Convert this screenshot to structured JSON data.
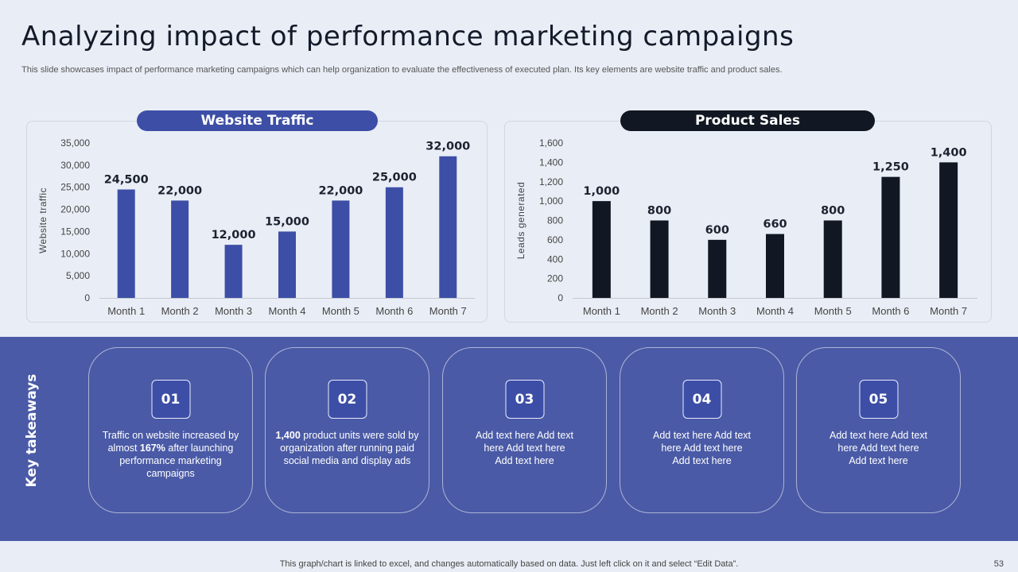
{
  "title": "Analyzing impact of performance marketing campaigns",
  "subtitle": "This slide showcases impact of performance marketing campaigns which can help organization to evaluate the effectiveness of executed plan. Its key elements are website traffic and product sales.",
  "colors": {
    "traffic_bar": "#3d4ea6",
    "sales_bar": "#111823",
    "band": "#4a5aa6",
    "background": "#e9eef6"
  },
  "chart_data": [
    {
      "type": "bar",
      "title": "Website Traffic",
      "ylabel": "Website traffic",
      "xlabel": "",
      "categories": [
        "Month 1",
        "Month 2",
        "Month 3",
        "Month 4",
        "Month 5",
        "Month 6",
        "Month 7"
      ],
      "values": [
        24500,
        22000,
        12000,
        15000,
        22000,
        25000,
        32000
      ],
      "value_labels": [
        "24,500",
        "22,000",
        "12,000",
        "15,000",
        "22,000",
        "25,000",
        "32,000"
      ],
      "ylim": [
        0,
        35000
      ],
      "yticks": [
        0,
        5000,
        10000,
        15000,
        20000,
        25000,
        30000,
        35000
      ],
      "ytick_labels": [
        "0",
        "5,000",
        "10,000",
        "15,000",
        "20,000",
        "25,000",
        "30,000",
        "35,000"
      ],
      "grid": false,
      "color": "#3d4ea6"
    },
    {
      "type": "bar",
      "title": "Product Sales",
      "ylabel": "Leads generated",
      "xlabel": "",
      "categories": [
        "Month 1",
        "Month 2",
        "Month 3",
        "Month 4",
        "Month 5",
        "Month 6",
        "Month 7"
      ],
      "values": [
        1000,
        800,
        600,
        660,
        800,
        1250,
        1400
      ],
      "value_labels": [
        "1,000",
        "800",
        "600",
        "660",
        "800",
        "1,250",
        "1,400"
      ],
      "ylim": [
        0,
        1600
      ],
      "yticks": [
        0,
        200,
        400,
        600,
        800,
        1000,
        1200,
        1400,
        1600
      ],
      "ytick_labels": [
        "0",
        "200",
        "400",
        "600",
        "800",
        "1,000",
        "1,200",
        "1,400",
        "1,600"
      ],
      "grid": false,
      "color": "#111823"
    }
  ],
  "takeaways": {
    "label": "Key takeaways",
    "cards": [
      {
        "num": "01",
        "text_parts": [
          "Traffic on website increased by almost ",
          "167%",
          " after launching performance marketing campaigns"
        ]
      },
      {
        "num": "02",
        "text_parts": [
          "1,400",
          " product units were sold by organization after running paid social media and display ads"
        ]
      },
      {
        "num": "03",
        "text": "Add text here Add text here Add text here Add text here"
      },
      {
        "num": "04",
        "text": "Add text here Add text here Add text here Add text here"
      },
      {
        "num": "05",
        "text": "Add text here Add text here Add text here Add text here"
      }
    ]
  },
  "footer": "This graph/chart is linked to excel, and changes automatically based on data. Just left click on it and select “Edit Data”.",
  "page_number": "53"
}
